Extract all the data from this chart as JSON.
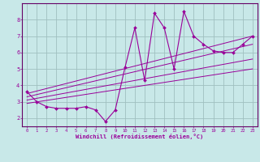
{
  "background_color": "#c8e8e8",
  "grid_color": "#a0c0c0",
  "line_color": "#990099",
  "marker_color": "#990099",
  "xlabel": "Windchill (Refroidissement éolien,°C)",
  "xlabel_color": "#990099",
  "tick_color": "#990099",
  "ylabel_ticks": [
    2,
    3,
    4,
    5,
    6,
    7,
    8
  ],
  "xlim": [
    -0.5,
    23.5
  ],
  "ylim": [
    1.5,
    9.0
  ],
  "xtick_labels": [
    "0",
    "1",
    "2",
    "3",
    "4",
    "5",
    "6",
    "7",
    "8",
    "9",
    "10",
    "11",
    "12",
    "13",
    "14",
    "15",
    "16",
    "17",
    "18",
    "19",
    "20",
    "21",
    "22",
    "23"
  ],
  "scatter_x": [
    0,
    1,
    2,
    3,
    4,
    5,
    6,
    7,
    8,
    9,
    10,
    11,
    12,
    13,
    14,
    15,
    16,
    17,
    18,
    19,
    20,
    21,
    22,
    23
  ],
  "scatter_y": [
    3.6,
    3.0,
    2.7,
    2.6,
    2.6,
    2.6,
    2.7,
    2.5,
    1.8,
    2.5,
    5.1,
    7.5,
    4.3,
    8.4,
    7.5,
    5.0,
    8.5,
    7.0,
    6.5,
    6.1,
    6.0,
    6.0,
    6.5,
    7.0
  ],
  "reg_lines": [
    {
      "x": [
        0,
        23
      ],
      "y": [
        2.9,
        5.0
      ]
    },
    {
      "x": [
        0,
        23
      ],
      "y": [
        3.1,
        5.6
      ]
    },
    {
      "x": [
        0,
        23
      ],
      "y": [
        3.3,
        6.5
      ]
    },
    {
      "x": [
        0,
        23
      ],
      "y": [
        3.5,
        7.0
      ]
    }
  ],
  "spine_color": "#660066"
}
